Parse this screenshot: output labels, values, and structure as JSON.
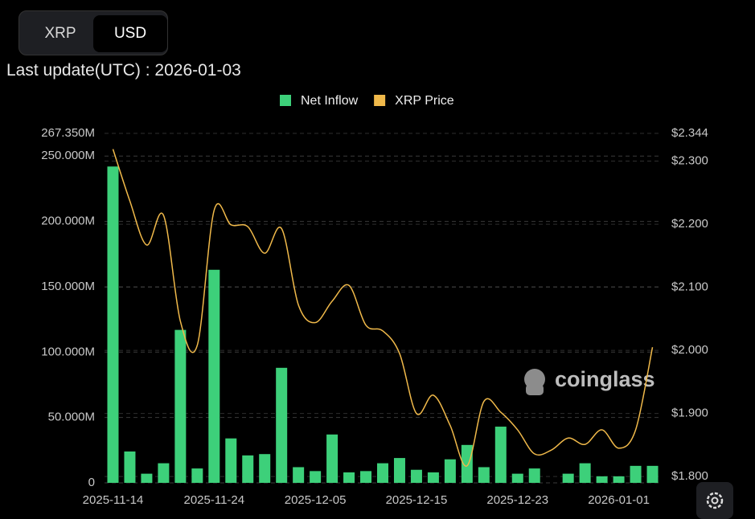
{
  "toggle": [
    "XRP",
    "USD"
  ],
  "last_update": "Last update(UTC) : 2026-01-03",
  "watermark": "coinglass",
  "chart_data": {
    "type": "bar",
    "categories": [
      "2025-11-14",
      null,
      null,
      null,
      null,
      null,
      "2025-11-24",
      null,
      null,
      null,
      null,
      null,
      "2025-12-05",
      null,
      null,
      null,
      null,
      null,
      "2025-12-15",
      null,
      null,
      null,
      null,
      null,
      "2025-12-23",
      null,
      null,
      null,
      null,
      null,
      "2026-01-01",
      null,
      null
    ],
    "series": [
      {
        "name": "Net Inflow",
        "color": "#3dd07a",
        "values": [
          242000000,
          24000000,
          7000000,
          15000000,
          117000000,
          11000000,
          163000000,
          34000000,
          21000000,
          22000000,
          88000000,
          12000000,
          9000000,
          37000000,
          8000000,
          9000000,
          15000000,
          19000000,
          10000000,
          8000000,
          18000000,
          29000000,
          12000000,
          43000000,
          7000000,
          11000000,
          0,
          7000000,
          15000000,
          5000000,
          5000000,
          13000000,
          13000000
        ]
      },
      {
        "name": "XRP Price",
        "color": "#f0b94a",
        "axis": "y2",
        "type": "line",
        "values": [
          2.319,
          2.237,
          2.167,
          2.214,
          2.046,
          2.008,
          2.222,
          2.199,
          2.196,
          2.154,
          2.193,
          2.072,
          2.044,
          2.078,
          2.103,
          2.04,
          2.031,
          1.995,
          1.9,
          1.929,
          1.881,
          1.817,
          1.919,
          1.902,
          1.874,
          1.836,
          1.842,
          1.861,
          1.851,
          1.874,
          1.845,
          1.874,
          2.005
        ]
      }
    ],
    "ylim": [
      0,
      267350000
    ],
    "yticks": [
      {
        "value": 0,
        "label": "0"
      },
      {
        "value": 50000000,
        "label": "50.000M"
      },
      {
        "value": 100000000,
        "label": "100.000M"
      },
      {
        "value": 150000000,
        "label": "150.000M"
      },
      {
        "value": 200000000,
        "label": "200.000M"
      },
      {
        "value": 250000000,
        "label": "250.000M"
      },
      {
        "value": 267350000,
        "label": "267.350M"
      }
    ],
    "y2lim": [
      1.79,
      2.344
    ],
    "y2ticks": [
      {
        "value": 1.8,
        "label": "$1.800"
      },
      {
        "value": 1.9,
        "label": "$1.900"
      },
      {
        "value": 2.0,
        "label": "$2.000"
      },
      {
        "value": 2.1,
        "label": "$2.100"
      },
      {
        "value": 2.2,
        "label": "$2.200"
      },
      {
        "value": 2.3,
        "label": "$2.300"
      },
      {
        "value": 2.344,
        "label": "$2.344"
      }
    ],
    "grid": true,
    "legend": "top"
  }
}
